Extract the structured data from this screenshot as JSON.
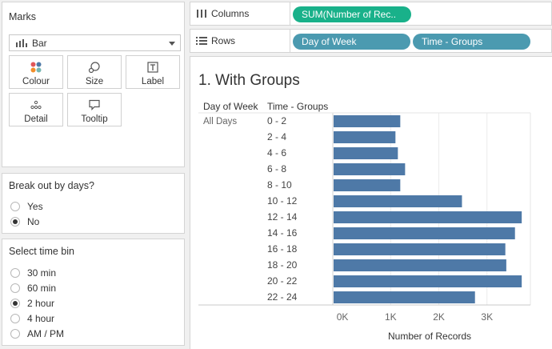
{
  "marks": {
    "title": "Marks",
    "mark_type": "Bar",
    "buttons": [
      {
        "label": "Colour",
        "icon": "colour-dots-icon"
      },
      {
        "label": "Size",
        "icon": "size-icon"
      },
      {
        "label": "Label",
        "icon": "label-icon"
      },
      {
        "label": "Detail",
        "icon": "detail-icon"
      },
      {
        "label": "Tooltip",
        "icon": "tooltip-icon"
      }
    ]
  },
  "break_out": {
    "title": "Break out by days?",
    "options": [
      {
        "label": "Yes",
        "checked": false
      },
      {
        "label": "No",
        "checked": true
      }
    ]
  },
  "time_bin": {
    "title": "Select time bin",
    "options": [
      {
        "label": "30 min",
        "checked": false
      },
      {
        "label": "60 min",
        "checked": false
      },
      {
        "label": "2 hour",
        "checked": true
      },
      {
        "label": "4 hour",
        "checked": false
      },
      {
        "label": "AM / PM",
        "checked": false
      }
    ]
  },
  "shelves": {
    "columns": {
      "label": "Columns",
      "pill": "SUM(Number of Rec.."
    },
    "rows": {
      "label": "Rows",
      "pills": [
        "Day of Week",
        "Time - Groups"
      ]
    }
  },
  "colors": {
    "bar": "#4e79a7",
    "pill_green": "#19b18a",
    "pill_blue": "#4b9ab0"
  },
  "view": {
    "title": "1. With Groups",
    "row_header_1": "Day of Week",
    "row_header_2": "Time - Groups",
    "day_label": "All Days"
  },
  "chart_data": {
    "type": "bar",
    "orientation": "horizontal",
    "categories": [
      "0 - 2",
      "2 - 4",
      "4 - 6",
      "6 - 8",
      "8 - 10",
      "10 - 12",
      "12 - 14",
      "14 - 16",
      "16 - 18",
      "18 - 20",
      "20 - 22",
      "22 - 24"
    ],
    "values": [
      1200,
      1100,
      1150,
      1300,
      1200,
      2480,
      3720,
      3580,
      3380,
      3400,
      3720,
      2750
    ],
    "xlabel": "Number of Records",
    "xticks": [
      "0K",
      "1K",
      "2K",
      "3K"
    ],
    "xtick_values": [
      0,
      1000,
      2000,
      3000
    ],
    "xlim": [
      -200,
      3900
    ],
    "grid": true
  }
}
